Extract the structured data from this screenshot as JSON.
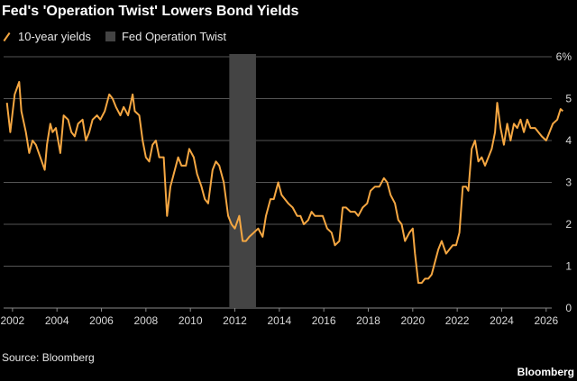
{
  "title": "Fed's 'Operation Twist' Lowers Bond Yields",
  "legend": {
    "line_label": "10-year yields",
    "band_label": "Fed Operation Twist"
  },
  "source": "Source: Bloomberg",
  "brand": "Bloomberg",
  "colors": {
    "line": "#f5a742",
    "band": "#444444",
    "grid": "#555555",
    "background": "#000000"
  },
  "chart_data": {
    "type": "line",
    "title": "Fed's 'Operation Twist' Lowers Bond Yields",
    "xlabel": "",
    "ylabel": "",
    "xlim": [
      2001.6,
      2026.9
    ],
    "ylim": [
      0,
      6
    ],
    "y_unit_suffix": "%",
    "x_ticks": [
      "2002",
      "2004",
      "2006",
      "2008",
      "2010",
      "2012",
      "2014",
      "2016",
      "2018",
      "2020",
      "2022",
      "2024",
      "2026"
    ],
    "y_ticks": [
      "0",
      "1",
      "2",
      "3",
      "4",
      "5",
      "6%"
    ],
    "grid": "horizontal",
    "legend_position": "top-left",
    "highlight_band": {
      "name": "Fed Operation Twist",
      "x_start": 2011.75,
      "x_end": 2012.95
    },
    "series": [
      {
        "name": "10-year yields",
        "x": [
          2001.75,
          2001.9,
          2002.1,
          2002.3,
          2002.4,
          2002.6,
          2002.75,
          2002.9,
          2003.05,
          2003.25,
          2003.45,
          2003.55,
          2003.7,
          2003.8,
          2003.95,
          2004.15,
          2004.3,
          2004.5,
          2004.65,
          2004.8,
          2004.95,
          2005.15,
          2005.3,
          2005.45,
          2005.6,
          2005.8,
          2005.95,
          2006.15,
          2006.35,
          2006.5,
          2006.65,
          2006.85,
          2007.0,
          2007.2,
          2007.4,
          2007.5,
          2007.7,
          2007.85,
          2008.0,
          2008.15,
          2008.3,
          2008.45,
          2008.6,
          2008.8,
          2008.95,
          2009.1,
          2009.25,
          2009.45,
          2009.6,
          2009.8,
          2009.95,
          2010.15,
          2010.3,
          2010.5,
          2010.65,
          2010.8,
          2011.0,
          2011.15,
          2011.3,
          2011.5,
          2011.7,
          2011.85,
          2012.0,
          2012.2,
          2012.35,
          2012.5,
          2012.65,
          2012.85,
          2013.05,
          2013.25,
          2013.4,
          2013.6,
          2013.75,
          2013.95,
          2014.1,
          2014.25,
          2014.4,
          2014.6,
          2014.8,
          2014.95,
          2015.1,
          2015.3,
          2015.45,
          2015.6,
          2015.8,
          2015.95,
          2016.15,
          2016.35,
          2016.5,
          2016.7,
          2016.85,
          2017.0,
          2017.2,
          2017.4,
          2017.55,
          2017.75,
          2017.95,
          2018.1,
          2018.3,
          2018.5,
          2018.7,
          2018.85,
          2019.0,
          2019.2,
          2019.35,
          2019.5,
          2019.65,
          2019.85,
          2020.0,
          2020.1,
          2020.25,
          2020.4,
          2020.55,
          2020.7,
          2020.85,
          2021.0,
          2021.15,
          2021.3,
          2021.5,
          2021.65,
          2021.8,
          2021.95,
          2022.1,
          2022.25,
          2022.4,
          2022.5,
          2022.65,
          2022.8,
          2022.95,
          2023.1,
          2023.25,
          2023.4,
          2023.55,
          2023.7,
          2023.8,
          2023.95,
          2024.1,
          2024.25,
          2024.4,
          2024.55,
          2024.7,
          2024.85,
          2025.0,
          2025.15,
          2025.3,
          2025.5,
          2025.65,
          2025.8,
          2026.0,
          2026.15,
          2026.3,
          2026.5,
          2026.65,
          2026.75
        ],
        "values": [
          4.9,
          4.2,
          5.1,
          5.4,
          4.7,
          4.2,
          3.7,
          4.0,
          3.9,
          3.6,
          3.3,
          3.9,
          4.4,
          4.2,
          4.3,
          3.7,
          4.6,
          4.5,
          4.2,
          4.1,
          4.4,
          4.5,
          4.0,
          4.2,
          4.5,
          4.6,
          4.5,
          4.7,
          5.1,
          5.0,
          4.8,
          4.6,
          4.8,
          4.6,
          5.1,
          4.7,
          4.6,
          4.0,
          3.6,
          3.5,
          3.9,
          4.0,
          3.6,
          3.6,
          2.2,
          2.9,
          3.2,
          3.6,
          3.4,
          3.4,
          3.8,
          3.6,
          3.2,
          2.9,
          2.6,
          2.5,
          3.3,
          3.5,
          3.4,
          3.0,
          2.2,
          2.0,
          1.9,
          2.2,
          1.6,
          1.6,
          1.7,
          1.8,
          1.9,
          1.7,
          2.2,
          2.6,
          2.6,
          3.0,
          2.7,
          2.6,
          2.5,
          2.4,
          2.2,
          2.2,
          2.0,
          2.1,
          2.3,
          2.2,
          2.2,
          2.2,
          1.9,
          1.8,
          1.5,
          1.6,
          2.4,
          2.4,
          2.3,
          2.3,
          2.2,
          2.4,
          2.5,
          2.8,
          2.9,
          2.9,
          3.1,
          3.0,
          2.7,
          2.5,
          2.1,
          2.0,
          1.6,
          1.8,
          1.9,
          1.3,
          0.6,
          0.6,
          0.7,
          0.7,
          0.8,
          1.1,
          1.4,
          1.6,
          1.3,
          1.4,
          1.5,
          1.5,
          1.8,
          2.9,
          2.9,
          2.8,
          3.8,
          4.0,
          3.5,
          3.6,
          3.4,
          3.6,
          3.8,
          4.2,
          4.9,
          4.3,
          3.9,
          4.4,
          4.0,
          4.4,
          4.3,
          4.5,
          4.2,
          4.5,
          4.3,
          4.3,
          4.2,
          4.1,
          4.0,
          4.2,
          4.4,
          4.5,
          4.75,
          4.7
        ]
      }
    ]
  }
}
